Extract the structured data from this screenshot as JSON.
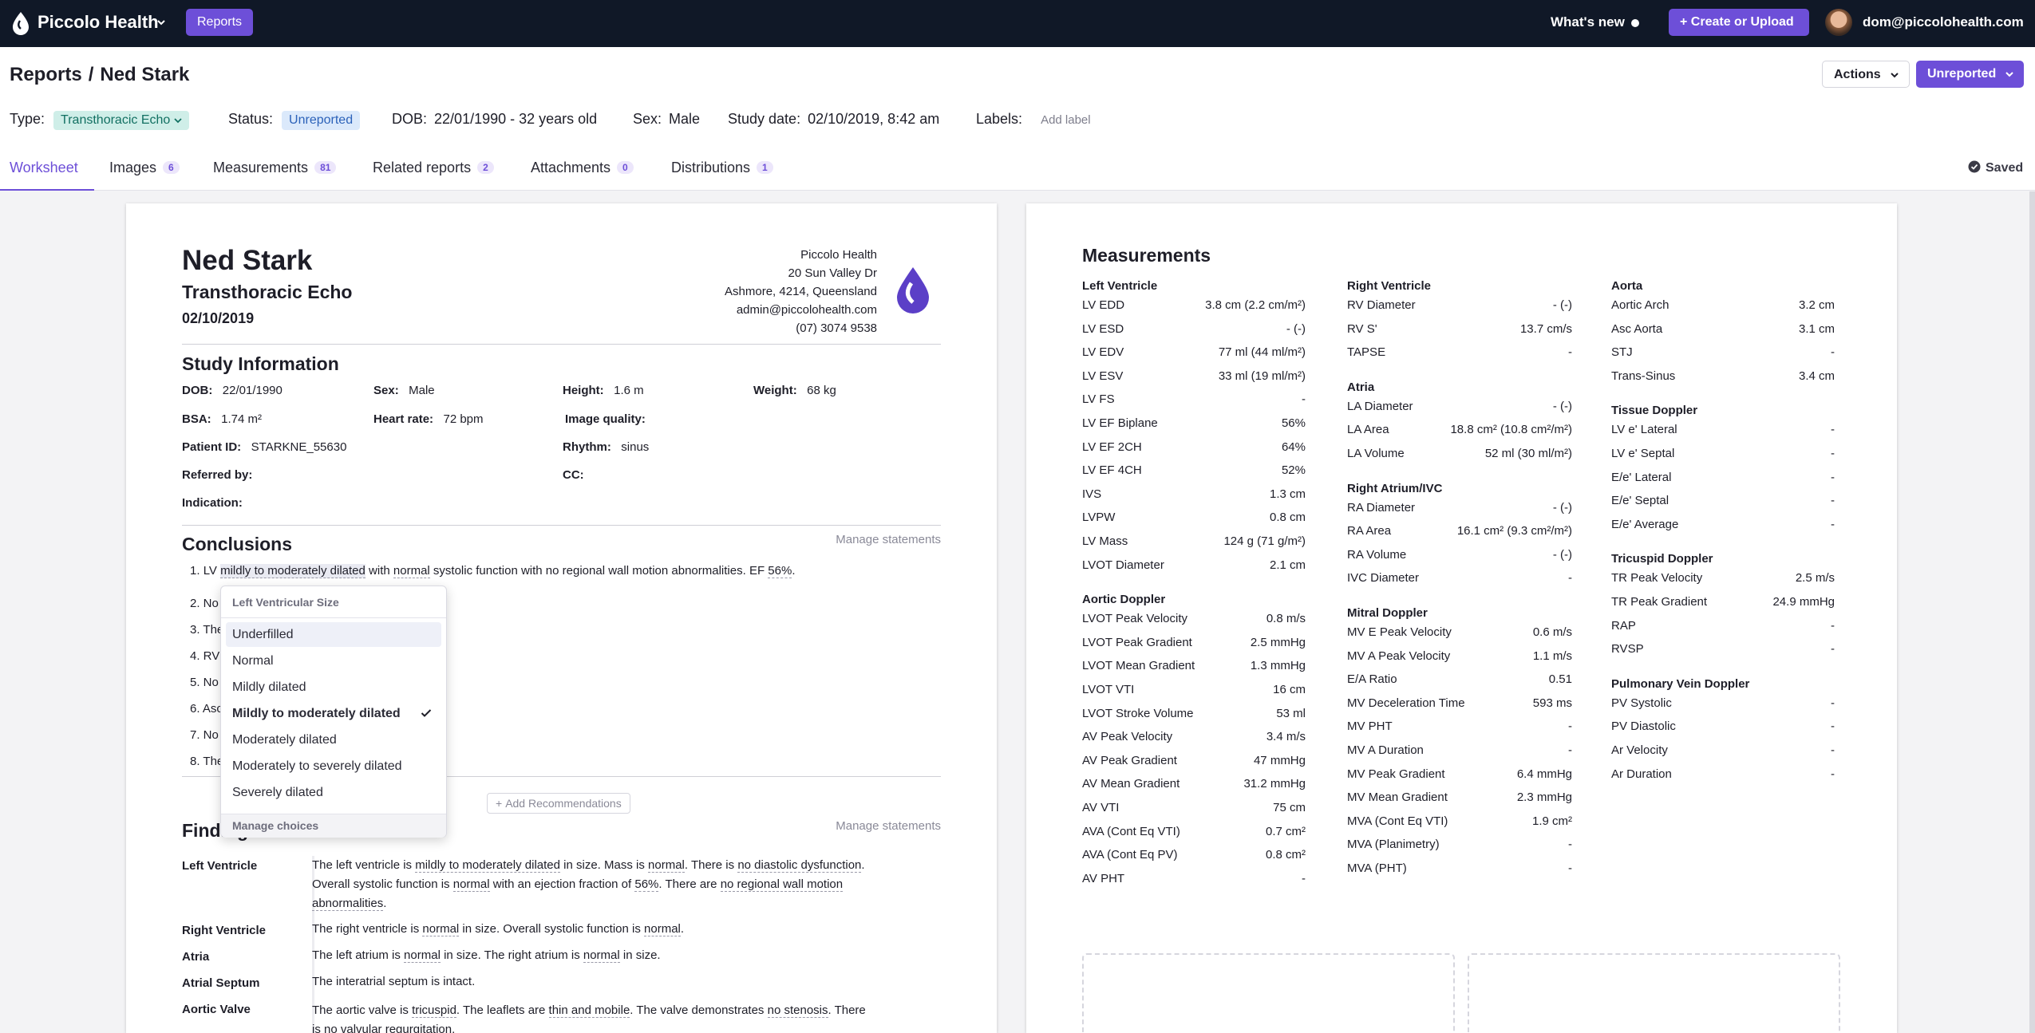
{
  "nav": {
    "brand": "Piccolo Health",
    "reports_button": "Reports",
    "whats_new": "What's new",
    "create_button": "+ Create or Upload",
    "user_email": "dom@piccolohealth.com"
  },
  "header": {
    "breadcrumb_root": "Reports",
    "breadcrumb_sep": "/",
    "breadcrumb_current": "Ned Stark",
    "actions_button": "Actions",
    "status_button": "Unreported",
    "type_label": "Type:",
    "type_value": "Transthoracic Echo",
    "status_label": "Status:",
    "status_value": "Unreported",
    "dob_label": "DOB:",
    "dob_value": "22/01/1990 - 32 years old",
    "sex_label": "Sex:",
    "sex_value": "Male",
    "study_date_label": "Study date:",
    "study_date_value": "02/10/2019, 8:42 am",
    "labels_label": "Labels:",
    "add_label": "Add label",
    "saved": "Saved"
  },
  "tabs": [
    {
      "label": "Worksheet",
      "count": ""
    },
    {
      "label": "Images",
      "count": "6"
    },
    {
      "label": "Measurements",
      "count": "81"
    },
    {
      "label": "Related reports",
      "count": "2"
    },
    {
      "label": "Attachments",
      "count": "0"
    },
    {
      "label": "Distributions",
      "count": "1"
    }
  ],
  "report": {
    "patient_name": "Ned Stark",
    "study_type": "Transthoracic Echo",
    "study_date": "02/10/2019",
    "clinic": {
      "name": "Piccolo Health",
      "address1": "20 Sun Valley Dr",
      "address2": "Ashmore, 4214, Queensland",
      "email": "admin@piccolohealth.com",
      "phone": "(07) 3074 9538"
    },
    "study_info_title": "Study Information",
    "info": {
      "dob_label": "DOB:",
      "dob": "22/01/1990",
      "sex_label": "Sex:",
      "sex": "Male",
      "height_label": "Height:",
      "height": "1.6 m",
      "weight_label": "Weight:",
      "weight": "68 kg",
      "bsa_label": "BSA:",
      "bsa": "1.74 m²",
      "hr_label": "Heart rate:",
      "hr": "72 bpm",
      "iq_label": "Image quality:",
      "pid_label": "Patient ID:",
      "pid": "STARKNE_55630",
      "rhythm_label": "Rhythm:",
      "rhythm": "sinus",
      "referred_label": "Referred by:",
      "cc_label": "CC:",
      "indication_label": "Indication:"
    },
    "conclusions_title": "Conclusions",
    "manage_statements": "Manage statements",
    "conclusion1": {
      "num": "1.",
      "a": "LV",
      "b": "mildly to moderately dilated",
      "c": "with",
      "d": "normal",
      "e": "systolic function with no regional wall motion abnormalities. EF",
      "f": "56%",
      "g": "."
    },
    "conclusion_partials": [
      "2. No",
      "3. The",
      "4. RV",
      "5. No",
      "6. Asc",
      "7. No",
      "8. The"
    ],
    "add_recommendations": "Add Recommendations",
    "findings_title": "Findings",
    "findings": {
      "lv_label": "Left Ventricle",
      "lv_1": "The left ventricle is",
      "lv_2": "mildly to moderately dilated",
      "lv_3": "in size.  Mass is",
      "lv_4": "normal",
      "lv_5": ". There is",
      "lv_6": "no diastolic dysfunction",
      "lv_7": ".",
      "lv_line2a": "Overall systolic function is",
      "lv_line2b": "normal",
      "lv_line2c": "with an ejection fraction of",
      "lv_line2d": "56%",
      "lv_line2e": ". There are",
      "lv_line2f": "no regional wall motion",
      "lv_line3": "abnormalities",
      "lv_line3b": ".",
      "rv_label": "Right Ventricle",
      "rv_1": "The right ventricle is",
      "rv_2": "normal",
      "rv_3": "in size. Overall systolic function is",
      "rv_4": "normal",
      "rv_5": ".",
      "atria_label": "Atria",
      "atria_1": "The left atrium is",
      "atria_2": "normal",
      "atria_3": "in size. The right atrium is",
      "atria_4": "normal",
      "atria_5": "in size.",
      "septum_label": "Atrial Septum",
      "septum_text": "The interatrial septum is intact.",
      "aortic_label": "Aortic Valve",
      "aortic_1": "The aortic valve is",
      "aortic_2": "tricuspid",
      "aortic_3": ". The leaflets are",
      "aortic_4": "thin and mobile",
      "aortic_5": ". The valve demonstrates",
      "aortic_6": "no stenosis",
      "aortic_7": ". There",
      "aortic_line2": "is no valvular regurgitation."
    }
  },
  "dropdown": {
    "title": "Left Ventricular Size",
    "options": [
      "Underfilled",
      "Normal",
      "Mildly dilated",
      "Mildly to moderately dilated",
      "Moderately dilated",
      "Moderately to severely dilated",
      "Severely dilated"
    ],
    "selected": "Mildly to moderately dilated",
    "highlighted": "Underfilled",
    "manage": "Manage choices"
  },
  "measurements": {
    "title": "Measurements",
    "col1": [
      {
        "group": "Left Ventricle",
        "rows": [
          [
            "LV EDD",
            "3.8 cm (2.2 cm/m²)"
          ],
          [
            "LV ESD",
            "- (-)"
          ],
          [
            "LV EDV",
            "77 ml (44 ml/m²)"
          ],
          [
            "LV ESV",
            "33 ml (19 ml/m²)"
          ],
          [
            "LV FS",
            "-"
          ],
          [
            "LV EF Biplane",
            "56%"
          ],
          [
            "LV EF 2CH",
            "64%"
          ],
          [
            "LV EF 4CH",
            "52%"
          ],
          [
            "IVS",
            "1.3 cm"
          ],
          [
            "LVPW",
            "0.8 cm"
          ],
          [
            "LV Mass",
            "124 g (71 g/m²)"
          ],
          [
            "LVOT Diameter",
            "2.1 cm"
          ]
        ]
      },
      {
        "group": "Aortic Doppler",
        "rows": [
          [
            "LVOT Peak Velocity",
            "0.8 m/s"
          ],
          [
            "LVOT Peak Gradient",
            "2.5 mmHg"
          ],
          [
            "LVOT Mean Gradient",
            "1.3 mmHg"
          ],
          [
            "LVOT VTI",
            "16 cm"
          ],
          [
            "LVOT Stroke Volume",
            "53 ml"
          ],
          [
            "AV Peak Velocity",
            "3.4 m/s"
          ],
          [
            "AV Peak Gradient",
            "47 mmHg"
          ],
          [
            "AV Mean Gradient",
            "31.2 mmHg"
          ],
          [
            "AV VTI",
            "75 cm"
          ],
          [
            "AVA (Cont Eq VTI)",
            "0.7 cm²"
          ],
          [
            "AVA (Cont Eq PV)",
            "0.8 cm²"
          ],
          [
            "AV PHT",
            "-"
          ]
        ]
      }
    ],
    "col2": [
      {
        "group": "Right Ventricle",
        "rows": [
          [
            "RV Diameter",
            "- (-)"
          ],
          [
            "RV S'",
            "13.7 cm/s"
          ],
          [
            "TAPSE",
            "-"
          ]
        ]
      },
      {
        "group": "Atria",
        "rows": [
          [
            "LA Diameter",
            "- (-)"
          ],
          [
            "LA Area",
            "18.8 cm² (10.8 cm²/m²)"
          ],
          [
            "LA Volume",
            "52 ml (30 ml/m²)"
          ]
        ]
      },
      {
        "group": "Right Atrium/IVC",
        "rows": [
          [
            "RA Diameter",
            "- (-)"
          ],
          [
            "RA Area",
            "16.1 cm² (9.3 cm²/m²)"
          ],
          [
            "RA Volume",
            "- (-)"
          ],
          [
            "IVC Diameter",
            "-"
          ]
        ]
      },
      {
        "group": "Mitral Doppler",
        "rows": [
          [
            "MV E Peak Velocity",
            "0.6 m/s"
          ],
          [
            "MV A Peak Velocity",
            "1.1 m/s"
          ],
          [
            "E/A Ratio",
            "0.51"
          ],
          [
            "MV Deceleration Time",
            "593 ms"
          ],
          [
            "MV PHT",
            "-"
          ],
          [
            "MV A Duration",
            "-"
          ],
          [
            "MV Peak Gradient",
            "6.4 mmHg"
          ],
          [
            "MV Mean Gradient",
            "2.3 mmHg"
          ],
          [
            "MVA (Cont Eq VTI)",
            "1.9 cm²"
          ],
          [
            "MVA (Planimetry)",
            "-"
          ],
          [
            "MVA (PHT)",
            "-"
          ]
        ]
      }
    ],
    "col3": [
      {
        "group": "Aorta",
        "rows": [
          [
            "Aortic Arch",
            "3.2 cm"
          ],
          [
            "Asc Aorta",
            "3.1 cm"
          ],
          [
            "STJ",
            "-"
          ],
          [
            "Trans-Sinus",
            "3.4 cm"
          ]
        ]
      },
      {
        "group": "Tissue Doppler",
        "rows": [
          [
            "LV e' Lateral",
            "-"
          ],
          [
            "LV e' Septal",
            "-"
          ],
          [
            "E/e' Lateral",
            "-"
          ],
          [
            "E/e' Septal",
            "-"
          ],
          [
            "E/e' Average",
            "-"
          ]
        ]
      },
      {
        "group": "Tricuspid Doppler",
        "rows": [
          [
            "TR Peak Velocity",
            "2.5 m/s"
          ],
          [
            "TR Peak Gradient",
            "24.9 mmHg"
          ],
          [
            "RAP",
            "-"
          ],
          [
            "RVSP",
            "-"
          ]
        ]
      },
      {
        "group": "Pulmonary Vein Doppler",
        "rows": [
          [
            "PV Systolic",
            "-"
          ],
          [
            "PV Diastolic",
            "-"
          ],
          [
            "Ar Velocity",
            "-"
          ],
          [
            "Ar Duration",
            "-"
          ]
        ]
      }
    ]
  },
  "colors": {
    "accent": "#6d4fd8",
    "nav_bg": "#101827",
    "type_tag_bg": "#cfeee8",
    "status_tag_bg": "#dbe9fb"
  }
}
